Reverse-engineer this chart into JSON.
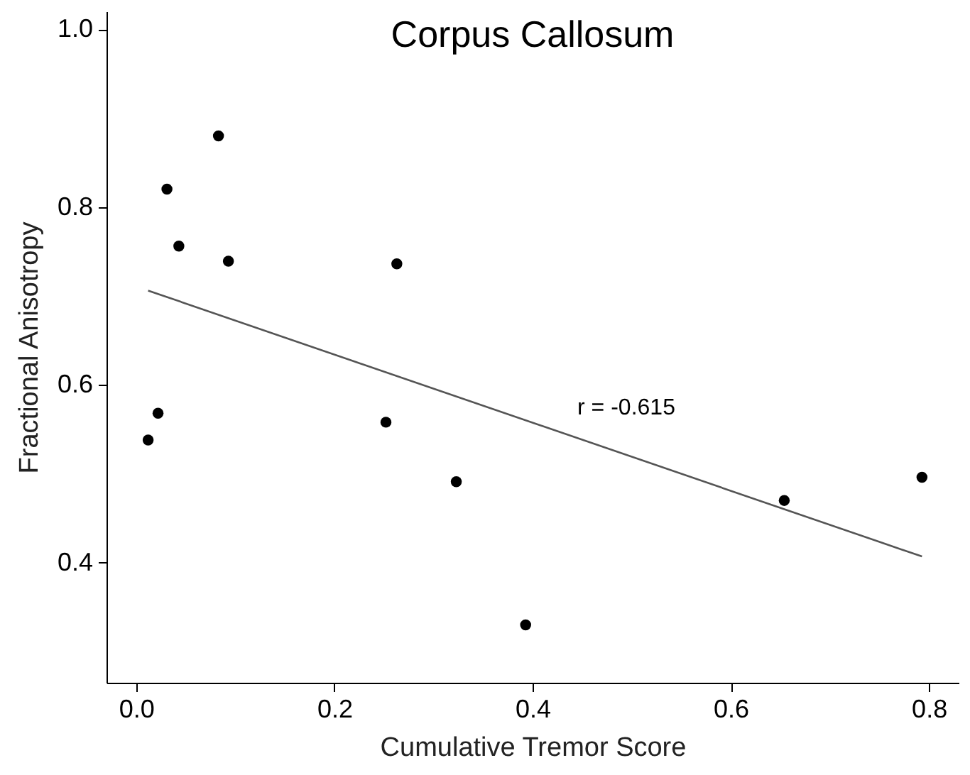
{
  "chart_data": {
    "type": "scatter",
    "title": "Corpus Callosum",
    "xlabel": "Cumulative Tremor Score",
    "ylabel": "Fractional Anisotropy",
    "xlim": [
      -0.03,
      0.83
    ],
    "ylim": [
      0.265,
      1.02
    ],
    "xticks": [
      {
        "value": 0,
        "label": "0.0"
      },
      {
        "value": 0.2,
        "label": "0.2"
      },
      {
        "value": 0.4,
        "label": "0.4"
      },
      {
        "value": 0.6,
        "label": "0.6"
      },
      {
        "value": 0.8,
        "label": "0.8"
      }
    ],
    "yticks": [
      {
        "value": 0.4,
        "label": "0.4"
      },
      {
        "value": 0.6,
        "label": "0.6"
      },
      {
        "value": 0.8,
        "label": "0.8"
      },
      {
        "value": 1,
        "label": "1.0"
      }
    ],
    "grid": false,
    "series": [
      {
        "color": "#000000",
        "marker": "circle",
        "x": [
          0.012,
          0.022,
          0.031,
          0.043,
          0.083,
          0.093,
          0.263,
          0.252,
          0.323,
          0.393,
          0.654,
          0.793
        ],
        "values": [
          0.538,
          0.568,
          0.82,
          0.756,
          0.88,
          0.739,
          0.736,
          0.558,
          0.491,
          0.33,
          0.47,
          0.496
        ]
      },
      {
        "type": "line",
        "color": "#555555",
        "x": [
          0.012,
          0.793
        ],
        "values": [
          0.706,
          0.407
        ]
      }
    ],
    "annotations": [
      "r = -0.615"
    ]
  }
}
